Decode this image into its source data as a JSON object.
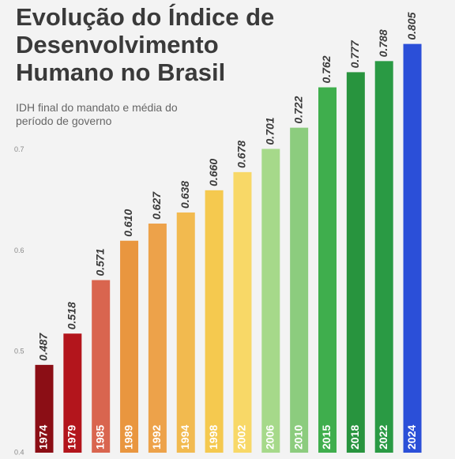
{
  "chart_data": {
    "type": "bar",
    "title": "Evolução do Índice de Desenvolvimento Humano no Brasil",
    "subtitle": "IDH final do mandato e média do período de governo",
    "categories": [
      "1974",
      "1979",
      "1985",
      "1989",
      "1992",
      "1994",
      "1998",
      "2002",
      "2006",
      "2010",
      "2015",
      "2018",
      "2022",
      "2024"
    ],
    "values": [
      0.487,
      0.518,
      0.571,
      0.61,
      0.627,
      0.638,
      0.66,
      0.678,
      0.701,
      0.722,
      0.762,
      0.777,
      0.788,
      0.805
    ],
    "value_labels": [
      "0.487",
      "0.518",
      "0.571",
      "0.610",
      "0.627",
      "0.638",
      "0.660",
      "0.678",
      "0.701",
      "0.722",
      "0.762",
      "0.777",
      "0.788",
      "0.805"
    ],
    "colors": [
      "#8b0e15",
      "#b3151c",
      "#d9654f",
      "#e9963f",
      "#eda24a",
      "#f2ba4f",
      "#f5c94f",
      "#f8d867",
      "#a6d98a",
      "#8ccc7e",
      "#3fae4d",
      "#28943e",
      "#2a9a44",
      "#2b4fd8"
    ],
    "ylim": [
      0.4,
      0.8
    ],
    "yticks": [
      0.4,
      0.5,
      0.6,
      0.7
    ]
  }
}
